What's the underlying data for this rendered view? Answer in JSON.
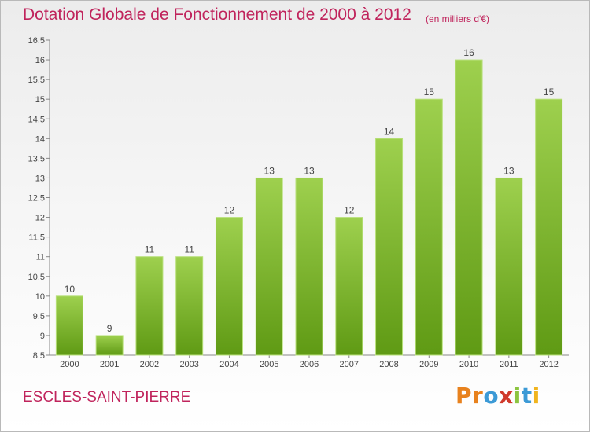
{
  "header": {
    "title": "Dotation Globale de Fonctionnement de 2000 à 2012",
    "unit": "(en milliers d'€)"
  },
  "footer": {
    "commune": "ESCLES-SAINT-PIERRE",
    "logo_letters": [
      "P",
      "r",
      "o",
      "x",
      "i",
      "t",
      "i"
    ],
    "logo_colors": [
      "#e8821e",
      "#e8821e",
      "#3c9ad6",
      "#d0392b",
      "#8cc540",
      "#3c9ad6",
      "#f0b41e"
    ]
  },
  "chart_data": {
    "type": "bar",
    "categories": [
      "2000",
      "2001",
      "2002",
      "2003",
      "2004",
      "2005",
      "2006",
      "2007",
      "2008",
      "2009",
      "2010",
      "2011",
      "2012"
    ],
    "values": [
      10,
      9,
      11,
      11,
      12,
      13,
      13,
      12,
      14,
      15,
      16,
      13,
      15
    ],
    "ylim": [
      8.5,
      16.5
    ],
    "yticks": [
      "8.5",
      "9",
      "9.5",
      "10",
      "10.5",
      "11",
      "11.5",
      "12",
      "12.5",
      "13",
      "13.5",
      "14",
      "14.5",
      "15",
      "15.5",
      "16",
      "16.5"
    ],
    "grid": false,
    "bar_color_top": "#9ed04e",
    "bar_color_bottom": "#5f9a14"
  }
}
